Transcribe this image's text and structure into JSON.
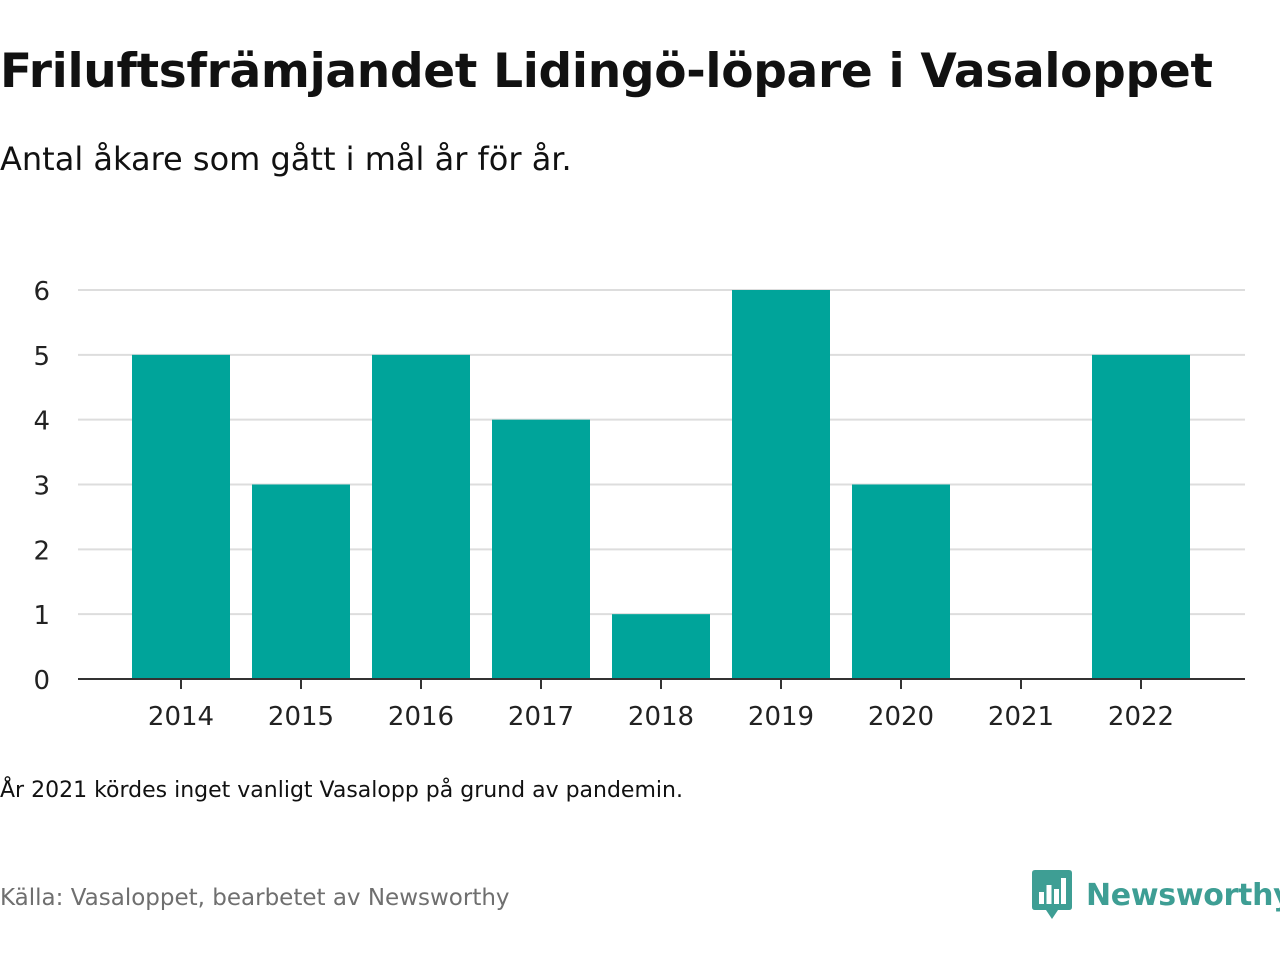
{
  "header": {
    "title": "Friluftsfrämjandet Lidingö-löpare i Vasaloppet",
    "subtitle": "Antal åkare som gått i mål år för år."
  },
  "footer": {
    "note": "År 2021 kördes inget vanligt Vasalopp på grund av pandemin.",
    "source": "Källa: Vasaloppet, bearbetet av Newsworthy",
    "brand": "Newsworthy",
    "brand_icon": "newsworthy-logo-icon"
  },
  "colors": {
    "bar": "#00a49a",
    "grid": "#dddddd",
    "axis": "#333333",
    "brand": "#3e9e94"
  },
  "chart_data": {
    "type": "bar",
    "categories": [
      "2014",
      "2015",
      "2016",
      "2017",
      "2018",
      "2019",
      "2020",
      "2021",
      "2022"
    ],
    "values": [
      5,
      3,
      5,
      4,
      1,
      6,
      3,
      0,
      5
    ],
    "ylim": [
      0,
      6
    ],
    "yticks": [
      "0",
      "1",
      "2",
      "3",
      "4",
      "5",
      "6"
    ],
    "grid": true,
    "legend": "none"
  }
}
